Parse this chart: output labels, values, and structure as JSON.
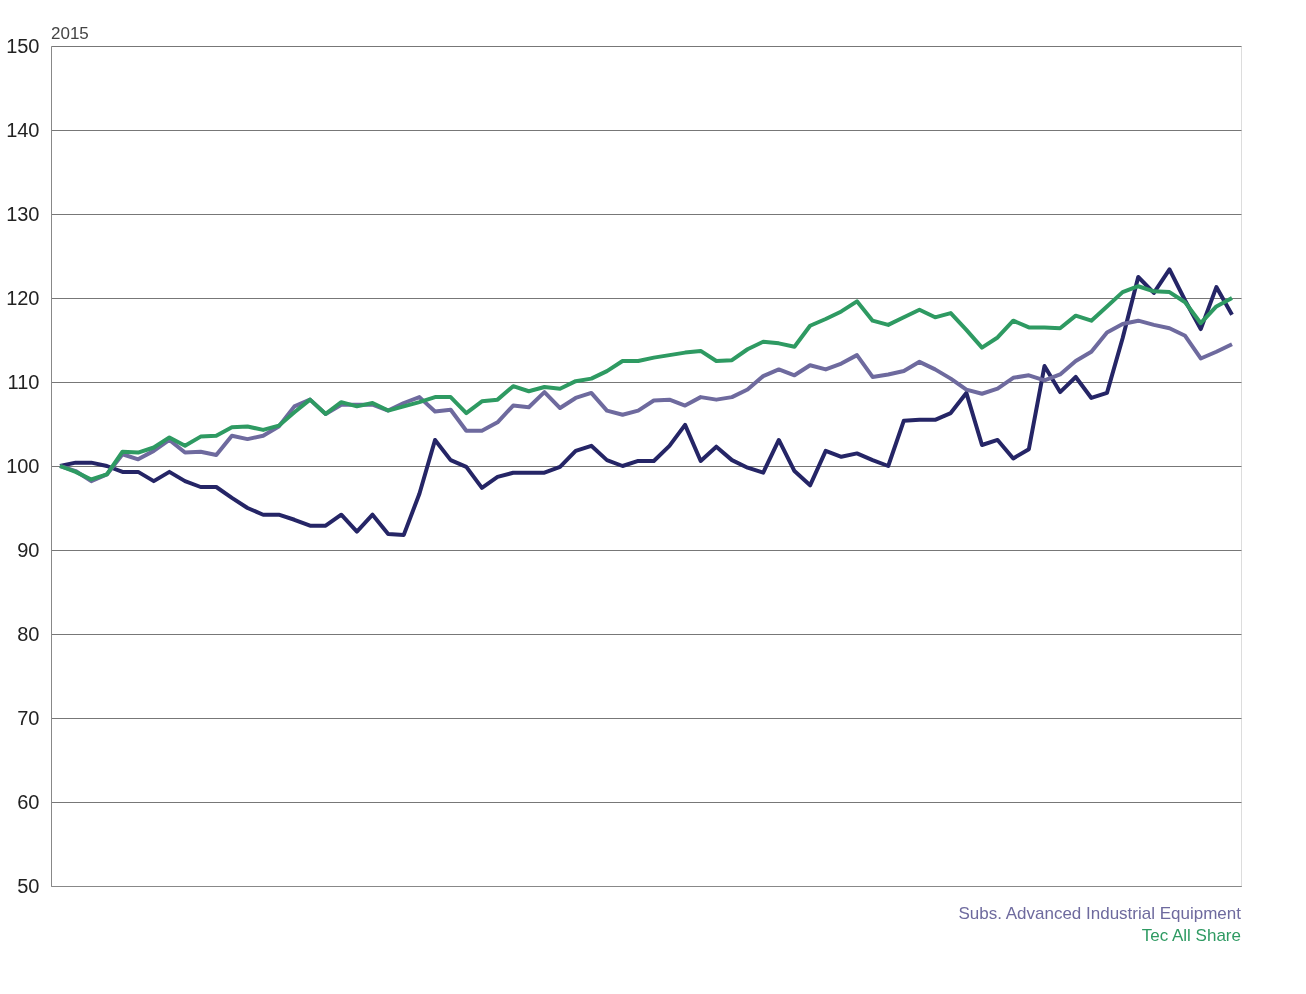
{
  "chart_data": {
    "type": "line",
    "annotations": [
      "2015"
    ],
    "categories": [
      null,
      null,
      null,
      null,
      null,
      null,
      null,
      null,
      null,
      null,
      null,
      null,
      null,
      null,
      null,
      null,
      null,
      null,
      null,
      null,
      null,
      null,
      null,
      null,
      null,
      null,
      null,
      null,
      null,
      null,
      null,
      null,
      null,
      null,
      null,
      null,
      null,
      null,
      null,
      null,
      null,
      null,
      null,
      null,
      null,
      null,
      null,
      null,
      null,
      null,
      null,
      null,
      null,
      null,
      null,
      null,
      null,
      null,
      null,
      null,
      null,
      null,
      null,
      null,
      null,
      null,
      null,
      null,
      null,
      null,
      null,
      null,
      null,
      null,
      null,
      null
    ],
    "series": [
      {
        "color": "#252566",
        "values": [
          100,
          100.4,
          100.4,
          100,
          99.3,
          99.3,
          98.2,
          99.3,
          98.2,
          97.5,
          97.5,
          96.2,
          95,
          94.2,
          94.2,
          93.6,
          92.9,
          92.9,
          94.2,
          92.2,
          94.2,
          91.9,
          91.8,
          96.7,
          103.1,
          100.7,
          99.9,
          97.4,
          98.7,
          99.2,
          99.2,
          99.2,
          99.9,
          101.8,
          102.4,
          100.7,
          100,
          100.6,
          100.6,
          102.4,
          104.9,
          100.6,
          102.3,
          100.7,
          99.8,
          99.2,
          103.1,
          99.4,
          97.7,
          101.8,
          101.1,
          101.5,
          100.7,
          100,
          105.4,
          105.5,
          105.5,
          106.3,
          108.7,
          102.5,
          103.1,
          100.9,
          102,
          111.9,
          108.8,
          110.6,
          108.1,
          108.7,
          115.2,
          122.5,
          120.6,
          123.4,
          119.7,
          116.3,
          121.3,
          118
        ]
      },
      {
        "name": "Subs. Advanced Industrial Equipment",
        "color": "#6e6a9e",
        "values": [
          100,
          99.4,
          98.2,
          99,
          101.4,
          100.8,
          101.8,
          103.1,
          101.6,
          101.7,
          101.3,
          103.6,
          103.2,
          103.6,
          104.7,
          107.1,
          107.9,
          106.2,
          107.3,
          107.3,
          107.3,
          106.6,
          107.5,
          108.2,
          106.5,
          106.7,
          104.2,
          104.2,
          105.2,
          107.2,
          107,
          108.8,
          106.9,
          108.1,
          108.7,
          106.6,
          106.1,
          106.6,
          107.8,
          107.9,
          107.2,
          108.2,
          107.9,
          108.2,
          109.1,
          110.7,
          111.5,
          110.8,
          112,
          111.5,
          112.2,
          113.2,
          110.6,
          110.9,
          111.3,
          112.4,
          111.5,
          110.4,
          109.1,
          108.6,
          109.2,
          110.5,
          110.8,
          110.2,
          110.9,
          112.5,
          113.6,
          115.9,
          116.9,
          117.3,
          116.8,
          116.4,
          115.5,
          112.8,
          113.6,
          114.5
        ]
      },
      {
        "name": "Tec All Share",
        "color": "#2e9a62",
        "values": [
          100,
          99.3,
          98.4,
          99,
          101.7,
          101.6,
          102.2,
          103.4,
          102.4,
          103.5,
          103.6,
          104.6,
          104.7,
          104.3,
          104.8,
          106.4,
          107.9,
          106.2,
          107.6,
          107.1,
          107.5,
          106.6,
          107.1,
          107.6,
          108.2,
          108.2,
          106.3,
          107.7,
          107.9,
          109.5,
          108.9,
          109.4,
          109.2,
          110.1,
          110.4,
          111.3,
          112.5,
          112.5,
          112.9,
          113.2,
          113.5,
          113.7,
          112.5,
          112.6,
          113.9,
          114.8,
          114.6,
          114.2,
          116.7,
          117.5,
          118.4,
          119.6,
          117.3,
          116.8,
          117.7,
          118.6,
          117.7,
          118.2,
          116.2,
          114.1,
          115.3,
          117.3,
          116.5,
          116.5,
          116.4,
          117.9,
          117.3,
          119,
          120.7,
          121.4,
          120.8,
          120.7,
          119.5,
          117,
          119,
          120
        ]
      }
    ],
    "ylim": [
      50,
      150
    ],
    "yticks": [
      50,
      60,
      70,
      80,
      90,
      100,
      110,
      120,
      130,
      140,
      150
    ],
    "grid": "y",
    "legend": "bottom right",
    "tick_labels": "y",
    "line_style": "solid",
    "marker": "none"
  }
}
